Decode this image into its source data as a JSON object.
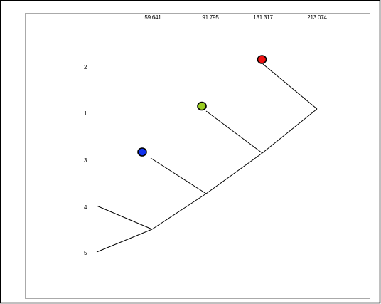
{
  "heights": [
    "59.641",
    "91.795",
    "131.317",
    "213.074"
  ],
  "leaves": [
    "2",
    "1",
    "3",
    "4",
    "5"
  ],
  "cluster_markers": [
    {
      "name": "red",
      "color": "#ee1111"
    },
    {
      "name": "green",
      "color": "#99cc22"
    },
    {
      "name": "blue",
      "color": "#1133ee"
    }
  ],
  "colors": {
    "line": "#000000",
    "outer_border": "#000000",
    "inner_border": "#aaaaaa",
    "marker_stroke": "#000000"
  }
}
